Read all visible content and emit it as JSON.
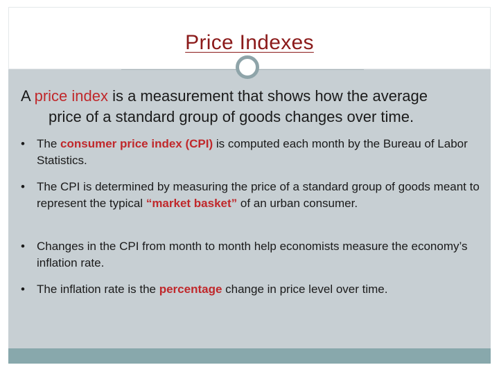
{
  "slide": {
    "title": "Price Indexes",
    "lead": {
      "part1": "A ",
      "highlight": "price index",
      "part2": " is a measurement that shows how the average",
      "line2": "price of a standard group of goods changes over time."
    },
    "bullets": [
      {
        "pre": "The ",
        "highlight": "consumer price index (CPI)",
        "post": " is computed each month by the Bureau of Labor Statistics."
      },
      {
        "pre": "The CPI is determined by measuring the price of a standard group of goods meant to represent the typical ",
        "highlight": "“market basket”",
        "post": " of an urban consumer."
      },
      {
        "pre": "Changes in the CPI from month to month help economists measure the economy’s inflation rate.",
        "highlight": "",
        "post": ""
      },
      {
        "pre": "The inflation rate is the ",
        "highlight": "percentage",
        "post": " change in price level over time."
      }
    ],
    "bullet_glyph": "•"
  },
  "colors": {
    "title": "#8b1a1a",
    "highlight": "#c0282b",
    "body_bg": "#c7cfd3",
    "footer_band": "#88a8ac",
    "circle_ring": "#8ea4a9"
  }
}
